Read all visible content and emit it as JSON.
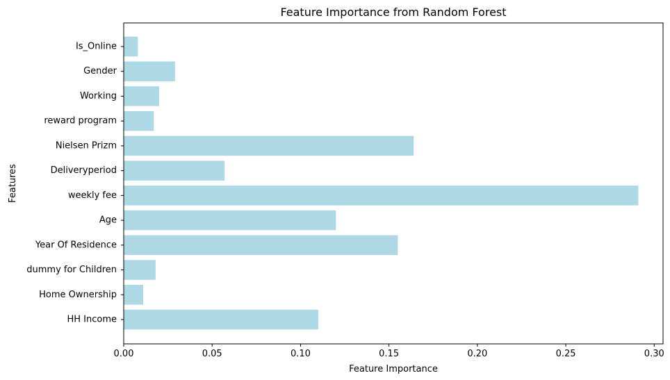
{
  "chart_data": {
    "type": "bar",
    "orientation": "horizontal",
    "title": "Feature Importance from Random Forest",
    "xlabel": "Feature Importance",
    "ylabel": "Features",
    "xlim": [
      0,
      0.305
    ],
    "xticks": [
      "0.00",
      "0.05",
      "0.10",
      "0.15",
      "0.20",
      "0.25",
      "0.30"
    ],
    "categories": [
      "HH Income",
      "Home Ownership",
      "dummy for Children",
      "Year Of Residence",
      "Age",
      "weekly fee",
      "Deliveryperiod",
      "Nielsen Prizm",
      "reward program",
      "Working",
      "Gender",
      "Is_Online"
    ],
    "values": [
      0.11,
      0.011,
      0.018,
      0.155,
      0.12,
      0.291,
      0.057,
      0.164,
      0.017,
      0.02,
      0.029,
      0.008
    ],
    "bar_color": "#add8e6",
    "grid": false,
    "legend": "none"
  }
}
